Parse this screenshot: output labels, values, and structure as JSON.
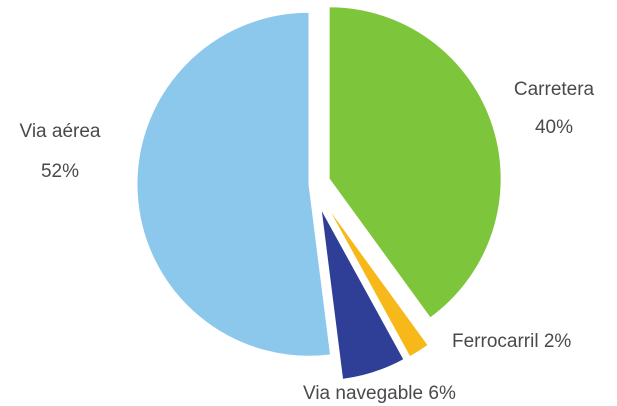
{
  "chart_data": {
    "type": "pie",
    "slices": [
      {
        "label": "Carretera",
        "value": 40,
        "display": "40%",
        "color": "#7dc63b"
      },
      {
        "label": "Ferrocarril",
        "value": 2,
        "display": "2%",
        "color": "#f7b91a"
      },
      {
        "label": "Via navegable",
        "value": 6,
        "display": "6%",
        "color": "#2f3f97"
      },
      {
        "label": "Via aérea",
        "value": 52,
        "display": "52%",
        "color": "#8cc8ec"
      }
    ]
  }
}
